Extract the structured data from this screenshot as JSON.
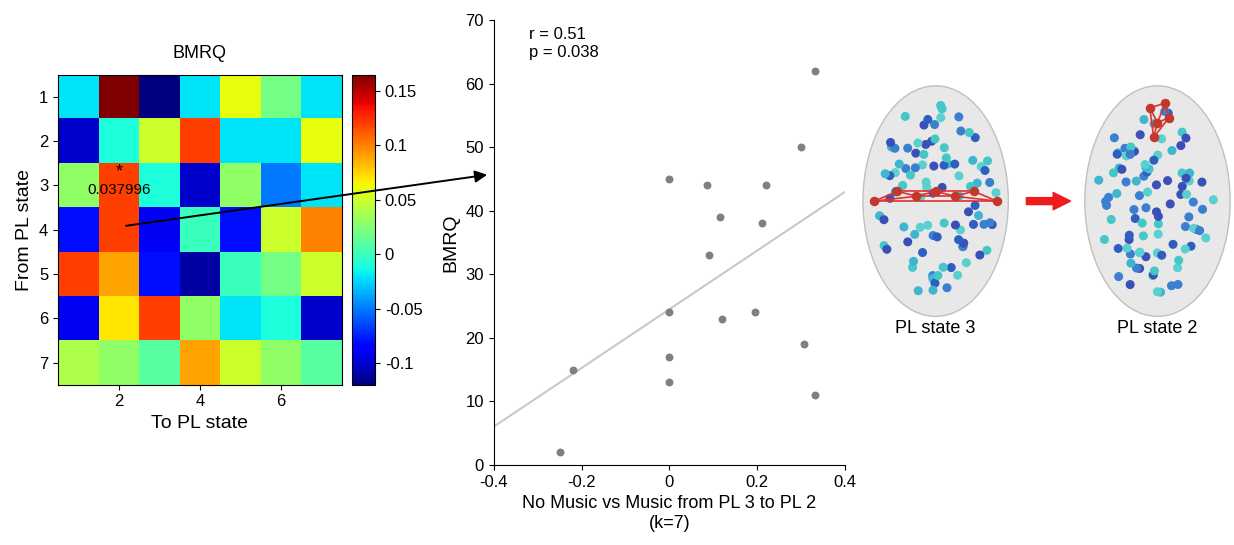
{
  "chart_data": [
    {
      "type": "heatmap",
      "title": "BMRQ",
      "x_label": "To PL state",
      "y_label": "From PL state",
      "cells": [
        [
          -0.02,
          0.165,
          -0.12,
          -0.02,
          0.06,
          0.02,
          -0.02
        ],
        [
          -0.1,
          -0.01,
          0.05,
          0.12,
          -0.02,
          -0.02,
          0.06
        ],
        [
          0.03,
          0.12,
          -0.01,
          -0.1,
          0.03,
          -0.05,
          -0.02
        ],
        [
          -0.08,
          0.12,
          -0.09,
          0.0,
          -0.08,
          0.05,
          0.1
        ],
        [
          0.12,
          0.09,
          -0.08,
          -0.11,
          0.0,
          0.02,
          0.05
        ],
        [
          -0.09,
          0.07,
          0.12,
          0.03,
          -0.02,
          -0.01,
          -0.1
        ],
        [
          0.04,
          0.03,
          0.01,
          0.09,
          0.05,
          0.03,
          0.01
        ]
      ],
      "xlim": [
        0.5,
        7.5
      ],
      "ylim": [
        7.5,
        0.5
      ],
      "xticks": [
        2,
        4,
        6
      ],
      "yticks": [
        1,
        2,
        3,
        4,
        5,
        6,
        7
      ],
      "color_range": [
        -0.12,
        0.165
      ],
      "color_ticks": [
        -0.1,
        -0.05,
        0,
        0.05,
        0.1,
        0.15
      ],
      "annotation": {
        "row": 3,
        "col": 2,
        "texts": [
          "*",
          "0.037996"
        ]
      }
    },
    {
      "type": "scatter",
      "x_label": "No Music vs Music from PL 3 to PL 2\n(k=7)",
      "y_label": "BMRQ",
      "annotations": [
        "r = 0.51",
        "p = 0.038"
      ],
      "x": [
        -0.25,
        -0.22,
        0,
        0,
        0,
        0,
        0.085,
        0.09,
        0.115,
        0.12,
        0.195,
        0.21,
        0.22,
        0.3,
        0.305,
        0.33,
        0.33
      ],
      "y": [
        2,
        15,
        45,
        24,
        17,
        13,
        44,
        33,
        39,
        23,
        24,
        38,
        44,
        50,
        19,
        62,
        11
      ],
      "color": "#808080",
      "fit_line": {
        "x": [
          -0.4,
          0.4
        ],
        "y": [
          6,
          43
        ],
        "color": "#c8c8c8"
      },
      "xlim": [
        -0.4,
        0.4
      ],
      "ylim": [
        0,
        70
      ],
      "xticks": [
        -0.4,
        -0.2,
        0,
        0.2,
        0.4
      ],
      "yticks": [
        0,
        10,
        20,
        30,
        40,
        50,
        60,
        70
      ]
    }
  ],
  "diagram": {
    "nodes": [
      {
        "label": "PL state 3"
      },
      {
        "label": "PL state 2"
      }
    ]
  }
}
